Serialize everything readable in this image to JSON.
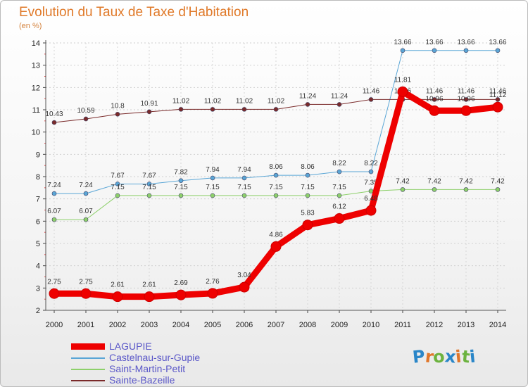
{
  "title": "Evolution du Taux de Taxe d'Habitation",
  "subtitle": "(en %)",
  "brand": {
    "letters": [
      "P",
      "r",
      "o",
      "x",
      "i",
      "t",
      "i"
    ],
    "colors": [
      "#2a86c8",
      "#e0762a",
      "#6cb33f",
      "#2a86c8",
      "#e0762a",
      "#6cb33f",
      "#2a86c8"
    ]
  },
  "chart_data": {
    "type": "line",
    "title": "Evolution du Taux de Taxe d'Habitation",
    "ylabel": "(en %)",
    "xlabel": "",
    "ylim": [
      2,
      14
    ],
    "yticks": [
      "2",
      "3",
      "4",
      "5",
      "6",
      "7",
      "8",
      "9",
      "10",
      "11",
      "12",
      "13",
      "14"
    ],
    "x": [
      "2000",
      "2001",
      "2002",
      "2003",
      "2004",
      "2005",
      "2006",
      "2007",
      "2008",
      "2009",
      "2010",
      "2011",
      "2012",
      "2013",
      "2014"
    ],
    "legend_position": "bottom-left",
    "series": [
      {
        "name": "LAGUPIE",
        "color": "#ee0000",
        "width": 9,
        "values": [
          2.75,
          2.75,
          2.61,
          2.61,
          2.69,
          2.76,
          3.04,
          4.86,
          5.83,
          6.12,
          6.48,
          11.81,
          10.96,
          10.96,
          11.12
        ],
        "labels": [
          "2.75",
          "2.75",
          "2.61",
          "2.61",
          "2.69",
          "2.76",
          "3.04",
          "4.86",
          "5.83",
          "6.12",
          "6.48",
          "11.81",
          "10.96",
          "10.96",
          "11.12"
        ]
      },
      {
        "name": "Castelnau-sur-Gupie",
        "color": "#5aa6d6",
        "width": 1,
        "values": [
          7.24,
          7.24,
          7.67,
          7.67,
          7.82,
          7.94,
          7.94,
          8.06,
          8.06,
          8.22,
          8.22,
          13.66,
          13.66,
          13.66,
          13.66
        ],
        "labels": [
          "7.24",
          "7.24",
          "7.67",
          "7.67",
          "7.82",
          "7.94",
          "7.94",
          "8.06",
          "8.06",
          "8.22",
          "8.22",
          "13.66",
          "13.66",
          "13.66",
          "13.66"
        ]
      },
      {
        "name": "Saint-Martin-Petit",
        "color": "#8dd06a",
        "width": 1,
        "values": [
          6.07,
          6.07,
          7.15,
          7.15,
          7.15,
          7.15,
          7.15,
          7.15,
          7.15,
          7.15,
          7.35,
          7.42,
          7.42,
          7.42,
          7.42
        ],
        "labels": [
          "6.07",
          "6.07",
          "7.15",
          "7.15",
          "7.15",
          "7.15",
          "7.15",
          "7.15",
          "7.15",
          "7.15",
          "7.35",
          "7.42",
          "7.42",
          "7.42",
          "7.42"
        ]
      },
      {
        "name": "Sainte-Bazeille",
        "color": "#7a2a2a",
        "width": 1,
        "values": [
          10.43,
          10.59,
          10.8,
          10.91,
          11.02,
          11.02,
          11.02,
          11.02,
          11.24,
          11.24,
          11.46,
          11.46,
          11.46,
          11.46,
          11.46
        ],
        "labels": [
          "10.43",
          "10.59",
          "10.8",
          "10.91",
          "11.02",
          "11.02",
          "11.02",
          "11.02",
          "11.24",
          "11.24",
          "11.46",
          "11.46",
          "11.46",
          "11.46",
          "11.46"
        ]
      }
    ]
  }
}
